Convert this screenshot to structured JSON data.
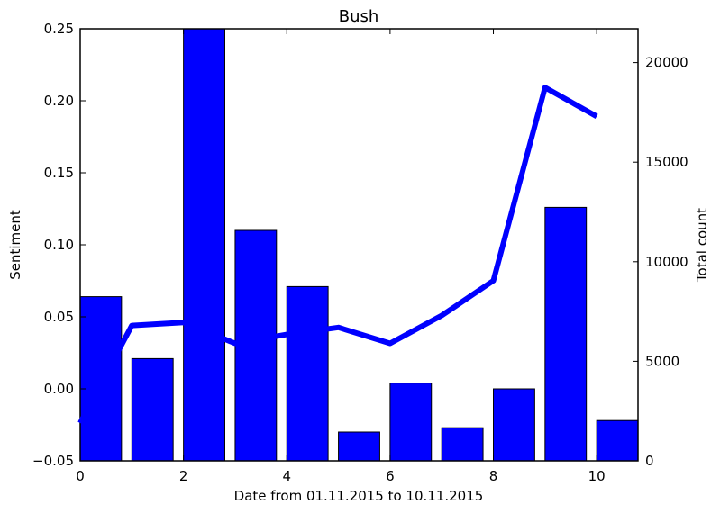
{
  "chart_data": {
    "type": "bar",
    "title": "Bush",
    "xlabel": "Date from 01.11.2015 to 10.11.2015",
    "ylabel_left": "Sentiment",
    "ylabel_right": "Total count",
    "xlim": [
      0,
      10.8
    ],
    "ylim_left": [
      -0.05,
      0.25
    ],
    "ylim_right": [
      0,
      21700
    ],
    "x_ticks": [
      0,
      2,
      4,
      6,
      8,
      10
    ],
    "x_tick_labels": [
      "0",
      "2",
      "4",
      "6",
      "8",
      "10"
    ],
    "y_left_ticks": [
      -0.05,
      0.0,
      0.05,
      0.1,
      0.15,
      0.2,
      0.25
    ],
    "y_left_tick_labels": [
      "−0.05",
      "0.00",
      "0.05",
      "0.10",
      "0.15",
      "0.20",
      "0.25"
    ],
    "y_right_ticks": [
      0,
      5000,
      10000,
      15000,
      20000
    ],
    "y_right_tick_labels": [
      "0",
      "5000",
      "10000",
      "15000",
      "20000"
    ],
    "bar_width": 0.8,
    "series": [
      {
        "kind": "bar",
        "axis": "left",
        "x": [
          0,
          1,
          2,
          3,
          4,
          5,
          6,
          7,
          8,
          9,
          10
        ],
        "values": [
          0.064,
          0.021,
          0.25,
          0.11,
          0.071,
          -0.03,
          0.004,
          -0.027,
          0.0,
          0.126,
          -0.022
        ]
      },
      {
        "kind": "line",
        "axis": "right",
        "x": [
          0,
          1,
          2,
          3,
          4,
          5,
          6,
          7,
          8,
          9,
          10
        ],
        "values": [
          1900,
          6800,
          6950,
          5900,
          6350,
          6700,
          5900,
          7300,
          9050,
          18750,
          17300
        ]
      }
    ],
    "colors": {
      "bar": "#0000ff",
      "line": "#0000ff"
    },
    "grid": false,
    "legend": "none"
  }
}
